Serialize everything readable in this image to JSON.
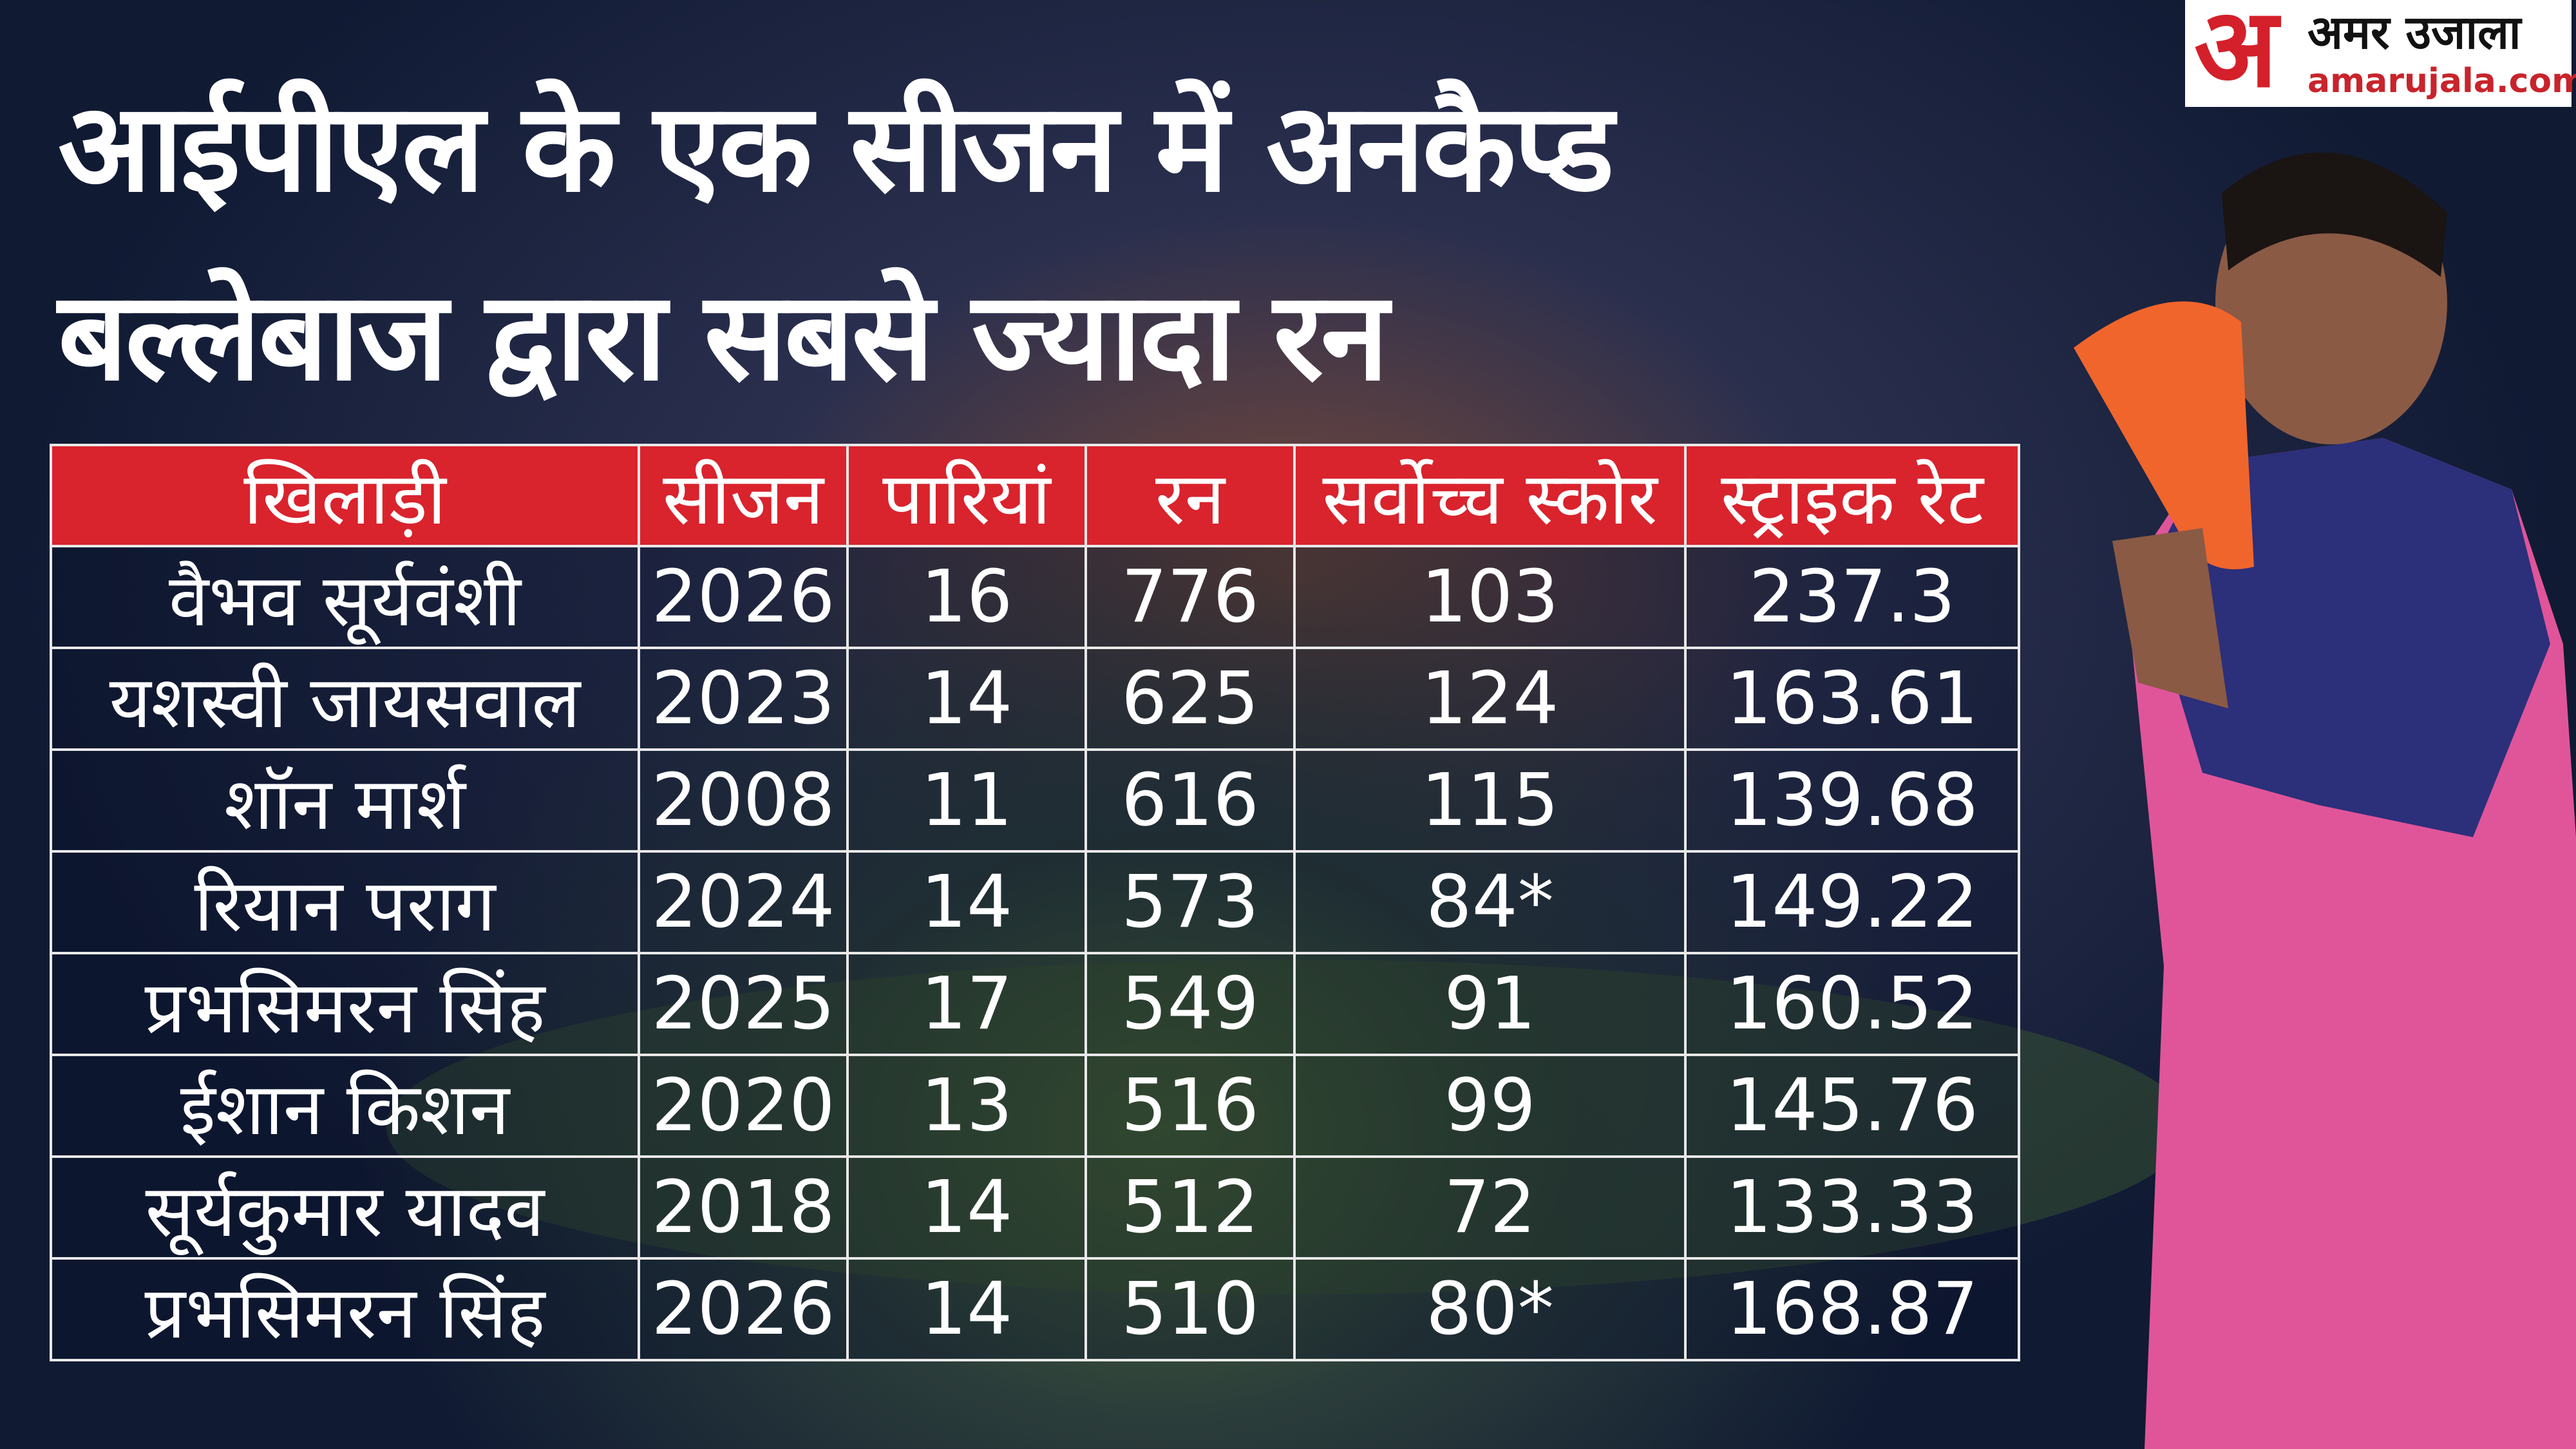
{
  "header": {
    "title_lines": [
      "आईपीएल के एक सीजन में अनकैप्ड",
      "बल्लेबाज द्वारा सबसे ज्यादा रन"
    ]
  },
  "logo": {
    "mark": "अ",
    "name": "अमर उजाला",
    "site": "amarujala.com"
  },
  "table": {
    "header": [
      "खिलाड़ी",
      "सीजन",
      "पारियां",
      "रन",
      "सर्वोच्च स्कोर",
      "स्ट्राइक रेट"
    ],
    "rows": [
      [
        "वैभव सूर्यवंशी",
        2026,
        16,
        776,
        103,
        237.3
      ],
      [
        "यशस्वी जायसवाल",
        2023,
        14,
        625,
        124,
        163.61
      ],
      [
        "शॉन मार्श",
        2008,
        11,
        616,
        115,
        139.68
      ],
      [
        "रियान पराग",
        2024,
        14,
        573,
        "84*",
        149.22
      ],
      [
        "प्रभसिमरन सिंह",
        2025,
        17,
        549,
        91,
        160.52
      ],
      [
        "ईशान किशन",
        2020,
        13,
        516,
        99,
        145.76
      ],
      [
        "सूर्यकुमार यादव",
        2018,
        14,
        512,
        72,
        133.33
      ],
      [
        "प्रभसिमरन सिंह",
        2026,
        14,
        510,
        "80*",
        168.87
      ]
    ]
  }
}
